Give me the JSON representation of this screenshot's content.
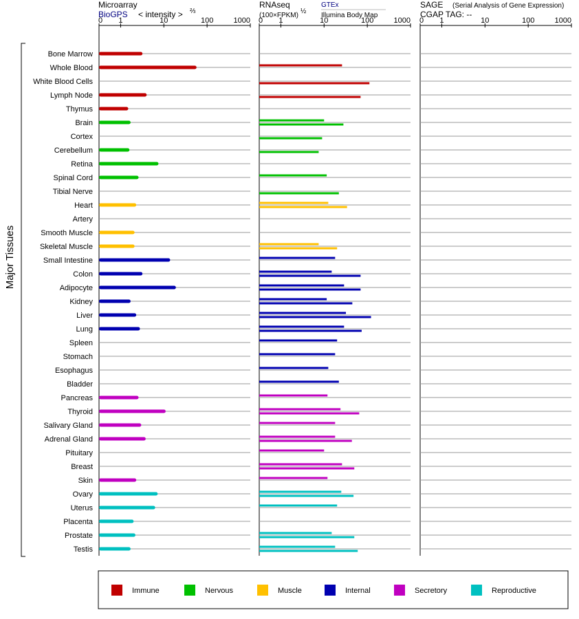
{
  "panels": [
    {
      "id": "microarray",
      "title": "Microarray",
      "subtitle_link": "BioGPS",
      "subtitle_rest": "< intensity >",
      "subtitle_exp": "⅔",
      "ticks": [
        "0",
        "1",
        "10",
        "100",
        "1000"
      ]
    },
    {
      "id": "rnaseq",
      "title": "RNAseq",
      "source_link": "GTEx",
      "unit_text": "(100×FPKM)",
      "unit_exp": "½",
      "source2": "Illumina Body Map",
      "ticks": [
        "0",
        "1",
        "10",
        "100",
        "1000"
      ]
    },
    {
      "id": "sage",
      "title": "SAGE",
      "title_note": "(Serial Analysis of Gene Expression)",
      "line2": "CGAP TAG:  --",
      "ticks": [
        "0",
        "1",
        "10",
        "100",
        "1000"
      ]
    }
  ],
  "y_axis_label": "Major Tissues",
  "legend": [
    {
      "label": "Immune",
      "color": "#c00000"
    },
    {
      "label": "Nervous",
      "color": "#00c000"
    },
    {
      "label": "Muscle",
      "color": "#ffc000"
    },
    {
      "label": "Internal",
      "color": "#0000b0"
    },
    {
      "label": "Secretory",
      "color": "#c000c0"
    },
    {
      "label": "Reproductive",
      "color": "#00c0c0"
    }
  ],
  "colors": {
    "immune": "#c00000",
    "nervous": "#00c000",
    "muscle": "#ffc000",
    "internal": "#0000b0",
    "secretory": "#c000c0",
    "reproductive": "#00c0c0",
    "link": "#000080"
  },
  "chart_data": {
    "type": "bar",
    "x_scale": "log-offset",
    "x_ticks": [
      0,
      1,
      10,
      100,
      1000
    ],
    "categories": [
      "Bone Marrow",
      "Whole Blood",
      "White Blood Cells",
      "Lymph Node",
      "Thymus",
      "Brain",
      "Cortex",
      "Cerebellum",
      "Retina",
      "Spinal Cord",
      "Tibial Nerve",
      "Heart",
      "Artery",
      "Smooth Muscle",
      "Skeletal Muscle",
      "Small Intestine",
      "Colon",
      "Adipocyte",
      "Kidney",
      "Liver",
      "Lung",
      "Spleen",
      "Stomach",
      "Esophagus",
      "Bladder",
      "Pancreas",
      "Thyroid",
      "Salivary Gland",
      "Adrenal Gland",
      "Pituitary",
      "Breast",
      "Skin",
      "Ovary",
      "Uterus",
      "Placenta",
      "Prostate",
      "Testis"
    ],
    "groups": [
      "immune",
      "immune",
      "immune",
      "immune",
      "immune",
      "nervous",
      "nervous",
      "nervous",
      "nervous",
      "nervous",
      "nervous",
      "muscle",
      "muscle",
      "muscle",
      "muscle",
      "internal",
      "internal",
      "internal",
      "internal",
      "internal",
      "internal",
      "internal",
      "internal",
      "internal",
      "internal",
      "secretory",
      "secretory",
      "secretory",
      "secretory",
      "secretory",
      "secretory",
      "secretory",
      "reproductive",
      "reproductive",
      "reproductive",
      "reproductive",
      "reproductive"
    ],
    "series": [
      {
        "name": "BioGPS",
        "values": [
          3.2,
          57,
          null,
          4.0,
          1.5,
          1.7,
          null,
          1.6,
          7.5,
          2.6,
          null,
          2.3,
          null,
          2.1,
          2.1,
          14,
          3.2,
          19,
          1.7,
          2.3,
          2.8,
          null,
          null,
          null,
          null,
          2.6,
          11,
          3.0,
          3.8,
          null,
          null,
          2.3,
          7.2,
          6.3,
          2.0,
          2.2,
          1.7
        ]
      },
      {
        "name": "GTEx",
        "values": [
          null,
          26,
          null,
          null,
          null,
          10,
          null,
          null,
          null,
          11.5,
          null,
          12.5,
          null,
          null,
          7.5,
          18,
          15,
          29,
          11.5,
          32,
          29,
          20,
          18,
          12.5,
          22,
          12,
          24,
          18,
          18,
          10,
          26,
          12,
          25,
          20,
          null,
          15,
          18
        ]
      },
      {
        "name": "Illumina Body Map",
        "values": [
          null,
          null,
          112,
          70,
          null,
          28,
          9,
          7.5,
          null,
          null,
          22,
          34,
          null,
          null,
          20,
          null,
          70,
          70,
          45,
          122,
          74,
          null,
          null,
          null,
          null,
          null,
          65,
          null,
          44,
          null,
          50,
          null,
          48,
          null,
          null,
          50,
          60
        ]
      }
    ]
  }
}
